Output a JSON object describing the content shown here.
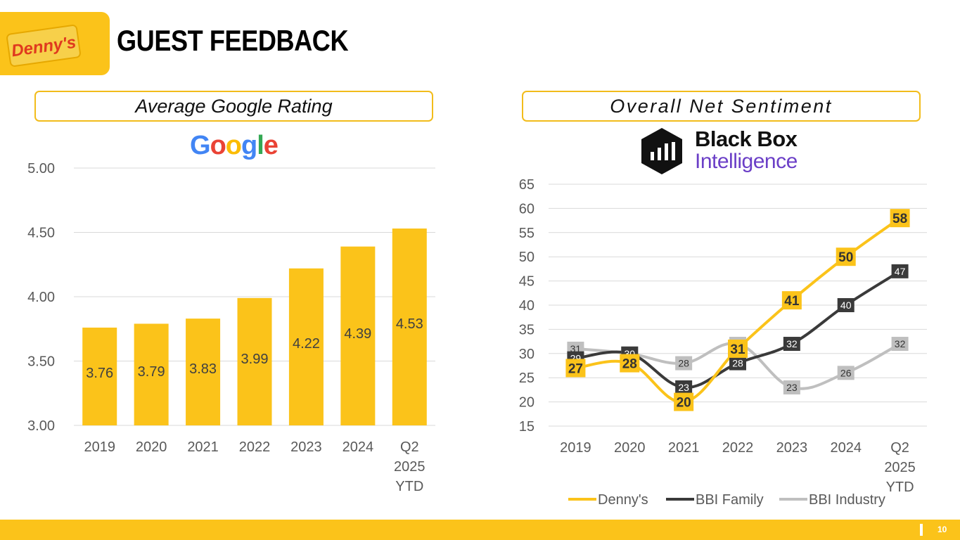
{
  "header": {
    "title": "GUEST FEEDBACK",
    "brand_logo_text": "Denny's",
    "accent_color": "#fbc31a"
  },
  "panels": {
    "left_title": "Average Google Rating",
    "right_title": "Overall Net Sentiment",
    "google_logo_letters": [
      "G",
      "o",
      "o",
      "g",
      "l",
      "e"
    ],
    "google_logo_colors": [
      "#4285F4",
      "#EA4335",
      "#FBBC05",
      "#4285F4",
      "#34A853",
      "#EA4335"
    ],
    "bbi_logo_line1": "Black Box",
    "bbi_logo_line2": "Intelligence"
  },
  "footer": {
    "page_number": "10"
  },
  "chart_data": [
    {
      "type": "bar",
      "title": "Average Google Rating",
      "categories": [
        [
          "2019"
        ],
        [
          "2020"
        ],
        [
          "2021"
        ],
        [
          "2022"
        ],
        [
          "2023"
        ],
        [
          "2024"
        ],
        [
          "Q2",
          "2025",
          "YTD"
        ]
      ],
      "values": [
        3.76,
        3.79,
        3.83,
        3.99,
        4.22,
        4.39,
        4.53
      ],
      "value_labels": [
        "3.76",
        "3.79",
        "3.83",
        "3.99",
        "4.22",
        "4.39",
        "4.53"
      ],
      "ylim": [
        3.0,
        5.0
      ],
      "yticks": [
        3.0,
        3.5,
        4.0,
        4.5,
        5.0
      ],
      "ytick_labels": [
        "3.00",
        "3.50",
        "4.00",
        "4.50",
        "5.00"
      ],
      "bar_color": "#fbc31a",
      "grid": true
    },
    {
      "type": "line",
      "title": "Overall Net Sentiment",
      "categories": [
        [
          "2019"
        ],
        [
          "2020"
        ],
        [
          "2021"
        ],
        [
          "2022"
        ],
        [
          "2023"
        ],
        [
          "2024"
        ],
        [
          "Q2",
          "2025",
          "YTD"
        ]
      ],
      "ylim": [
        15,
        65
      ],
      "yticks": [
        15,
        20,
        25,
        30,
        35,
        40,
        45,
        50,
        55,
        60,
        65
      ],
      "series": [
        {
          "name": "Denny's",
          "values": [
            27,
            28,
            20,
            31,
            41,
            50,
            58
          ],
          "color": "#fbc31a",
          "label_text_color": "#333333"
        },
        {
          "name": "BBI Family",
          "values": [
            29,
            30,
            23,
            28,
            32,
            40,
            47
          ],
          "color": "#3a3a3a",
          "label_text_color": "#ffffff"
        },
        {
          "name": "BBI Industry",
          "values": [
            31,
            30,
            28,
            32,
            23,
            26,
            32
          ],
          "color": "#bfbfbf",
          "label_text_color": "#333333"
        }
      ],
      "legend": "bottom",
      "grid": true
    }
  ]
}
